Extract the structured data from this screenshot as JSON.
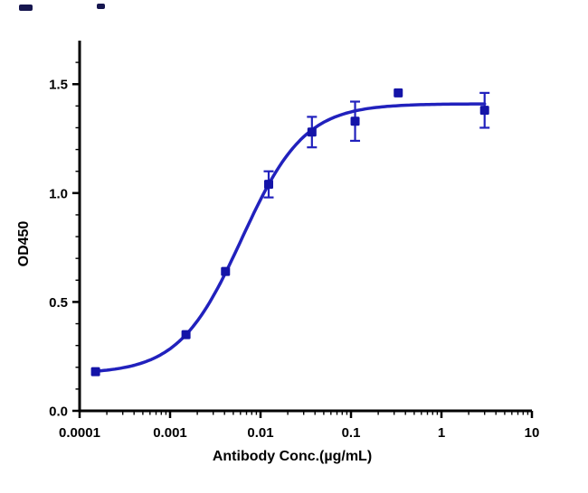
{
  "chart_data": {
    "type": "scatter",
    "title": "",
    "xlabel": "Antibody Conc.(µg/mL)",
    "ylabel": "OD450",
    "x_scale": "log",
    "xlog_range": [
      -4,
      1
    ],
    "ylim": [
      0,
      1.7
    ],
    "x_ticks": [
      0.0001,
      0.001,
      0.01,
      0.1,
      1,
      10
    ],
    "x_tick_labels": [
      "0.0001",
      "0.001",
      "0.01",
      "0.1",
      "1",
      "10"
    ],
    "y_ticks": [
      0.0,
      0.5,
      1.0,
      1.5
    ],
    "y_tick_labels": [
      "0.0",
      "0.5",
      "1.0",
      "1.5"
    ],
    "grid": false,
    "legend": false,
    "series": [
      {
        "marker": "square",
        "color": "#1414a8",
        "x": [
          0.00015,
          0.0015,
          0.0041,
          0.0123,
          0.037,
          0.111,
          0.333,
          3.0
        ],
        "y": [
          0.18,
          0.35,
          0.64,
          1.04,
          1.28,
          1.33,
          1.46,
          1.38
        ],
        "yerr": [
          0.015,
          0.02,
          0.025,
          0.06,
          0.07,
          0.09,
          0.0,
          0.08
        ]
      }
    ],
    "fit": {
      "model": "4PL",
      "bottom": 0.17,
      "top": 1.41,
      "ec50": 0.0062,
      "hill": 1.25
    }
  },
  "colors": {
    "curve": "#2121bd",
    "marker": "#1414a8",
    "axis": "#000000",
    "background": "#ffffff",
    "artifact": "#16164f"
  }
}
